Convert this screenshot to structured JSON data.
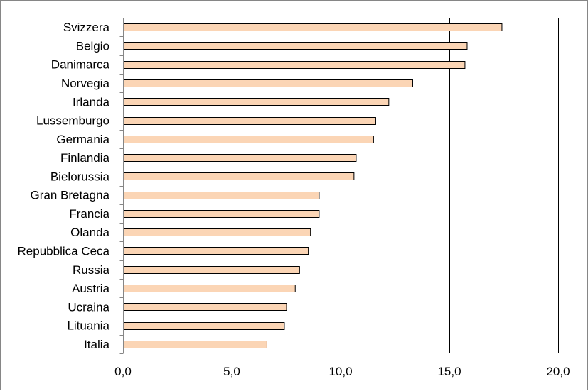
{
  "chart_data": {
    "type": "bar",
    "orientation": "horizontal",
    "categories": [
      "Svizzera",
      "Belgio",
      "Danimarca",
      "Norvegia",
      "Irlanda",
      "Lussemburgo",
      "Germania",
      "Finlandia",
      "Bielorussia",
      "Gran Bretagna",
      "Francia",
      "Olanda",
      "Repubblica Ceca",
      "Russia",
      "Austria",
      "Ucraina",
      "Lituania",
      "Italia"
    ],
    "values": [
      17.4,
      15.8,
      15.7,
      13.3,
      12.2,
      11.6,
      11.5,
      10.7,
      10.6,
      9.0,
      9.0,
      8.6,
      8.5,
      8.1,
      7.9,
      7.5,
      7.4,
      6.6
    ],
    "xlim": [
      0,
      20
    ],
    "xticks": [
      0,
      5,
      10,
      15,
      20
    ],
    "xtick_labels": [
      "0,0",
      "5,0",
      "10,0",
      "15,0",
      "20,0"
    ],
    "grid": "vertical-major",
    "colors": {
      "bar_fill": "#fbd5b5",
      "bar_stroke": "#000000",
      "grid": "#000000",
      "frame": "#868686"
    }
  }
}
